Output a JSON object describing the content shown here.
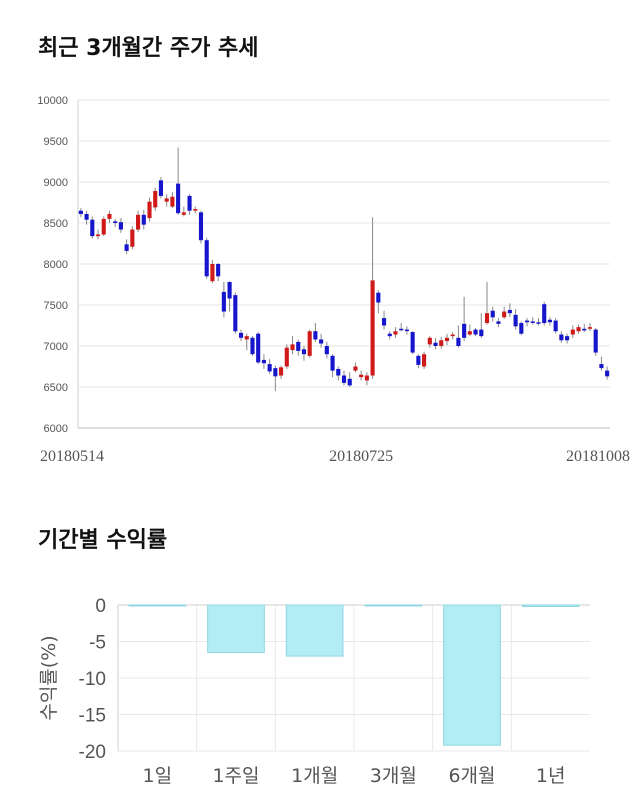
{
  "sections": {
    "price_trend_title": "최근 3개월간 주가 추세",
    "period_return_title": "기간별 수익률"
  },
  "colors": {
    "up": "#d01a1a",
    "down": "#1515cc",
    "return_bar": "#b3ecf5",
    "return_bar_border": "#8fd6e2"
  },
  "chart_data": [
    {
      "type": "candlestick",
      "title": "최근 3개월간 주가 추세",
      "ylim": [
        6000,
        10000
      ],
      "yticks": [
        6000,
        6500,
        7000,
        7500,
        8000,
        8500,
        9000,
        9500,
        10000
      ],
      "x_tick_labels": [
        "20180514",
        "20180725",
        "20181008"
      ],
      "x_tick_positions": [
        0,
        49,
        100
      ],
      "grid": true,
      "candles": [
        [
          8650,
          8610,
          8680,
          8570
        ],
        [
          8610,
          8540,
          8650,
          8480
        ],
        [
          8540,
          8340,
          8580,
          8310
        ],
        [
          8340,
          8360,
          8420,
          8300
        ],
        [
          8360,
          8550,
          8580,
          8340
        ],
        [
          8550,
          8610,
          8650,
          8500
        ],
        [
          8520,
          8500,
          8550,
          8450
        ],
        [
          8510,
          8420,
          8560,
          8380
        ],
        [
          8240,
          8160,
          8300,
          8120
        ],
        [
          8210,
          8420,
          8460,
          8180
        ],
        [
          8420,
          8600,
          8650,
          8390
        ],
        [
          8600,
          8480,
          8660,
          8420
        ],
        [
          8560,
          8760,
          8810,
          8520
        ],
        [
          8690,
          8890,
          8930,
          8650
        ],
        [
          9020,
          8830,
          9060,
          8800
        ],
        [
          8760,
          8800,
          8850,
          8700
        ],
        [
          8700,
          8820,
          8880,
          8680
        ],
        [
          8980,
          8620,
          9420,
          8600
        ],
        [
          8600,
          8630,
          8700,
          8580
        ],
        [
          8830,
          8650,
          8850,
          8600
        ],
        [
          8650,
          8670,
          8700,
          8620
        ],
        [
          8630,
          8290,
          8650,
          8250
        ],
        [
          8290,
          7850,
          8320,
          7820
        ],
        [
          7790,
          8000,
          8050,
          7770
        ],
        [
          8000,
          7850,
          8010,
          7790
        ],
        [
          7660,
          7420,
          7780,
          7350
        ],
        [
          7780,
          7580,
          7790,
          7420
        ],
        [
          7620,
          7180,
          7650,
          7150
        ],
        [
          7160,
          7100,
          7200,
          7060
        ],
        [
          7080,
          7120,
          7150,
          6950
        ],
        [
          7100,
          6900,
          7120,
          6880
        ],
        [
          7150,
          6800,
          7170,
          6780
        ],
        [
          6830,
          6790,
          6900,
          6720
        ],
        [
          6780,
          6690,
          6840,
          6660
        ],
        [
          6730,
          6630,
          6760,
          6450
        ],
        [
          6640,
          6740,
          6760,
          6600
        ],
        [
          6750,
          6980,
          7020,
          6720
        ],
        [
          6950,
          7020,
          7120,
          6900
        ],
        [
          7050,
          6940,
          7080,
          6880
        ],
        [
          6960,
          6900,
          7000,
          6820
        ],
        [
          6880,
          7180,
          7200,
          6860
        ],
        [
          7180,
          7080,
          7280,
          7050
        ],
        [
          7080,
          7030,
          7150,
          6980
        ],
        [
          7000,
          6900,
          7050,
          6850
        ],
        [
          6880,
          6700,
          6900,
          6620
        ],
        [
          6720,
          6640,
          6750,
          6580
        ],
        [
          6640,
          6550,
          6700,
          6520
        ],
        [
          6600,
          6520,
          6680,
          6500
        ],
        [
          6700,
          6750,
          6800,
          6680
        ],
        [
          6620,
          6650,
          6700,
          6580
        ],
        [
          6580,
          6640,
          6680,
          6520
        ],
        [
          6640,
          7800,
          8570,
          6600
        ],
        [
          7650,
          7530,
          7680,
          7400
        ],
        [
          7340,
          7250,
          7430,
          7200
        ],
        [
          7150,
          7120,
          7180,
          7080
        ],
        [
          7140,
          7180,
          7230,
          7100
        ],
        [
          7210,
          7200,
          7280,
          7180
        ],
        [
          7200,
          7190,
          7240,
          7140
        ],
        [
          7170,
          6920,
          7180,
          6900
        ],
        [
          6880,
          6770,
          6900,
          6730
        ],
        [
          6750,
          6900,
          6930,
          6720
        ],
        [
          7020,
          7100,
          7120,
          6980
        ],
        [
          7040,
          7000,
          7100,
          6960
        ],
        [
          7000,
          7070,
          7110,
          6970
        ],
        [
          7060,
          7100,
          7150,
          7010
        ],
        [
          7120,
          7140,
          7170,
          7080
        ],
        [
          7100,
          7000,
          7250,
          6980
        ],
        [
          7270,
          7100,
          7600,
          7060
        ],
        [
          7140,
          7180,
          7260,
          7120
        ],
        [
          7200,
          7140,
          7220,
          7120
        ],
        [
          7200,
          7120,
          7400,
          7100
        ],
        [
          7280,
          7400,
          7780,
          7260
        ],
        [
          7430,
          7350,
          7480,
          7300
        ],
        [
          7300,
          7270,
          7340,
          7230
        ],
        [
          7350,
          7420,
          7480,
          7330
        ],
        [
          7440,
          7400,
          7520,
          7350
        ],
        [
          7380,
          7240,
          7450,
          7200
        ],
        [
          7280,
          7150,
          7300,
          7130
        ],
        [
          7310,
          7290,
          7340,
          7240
        ],
        [
          7300,
          7290,
          7350,
          7260
        ],
        [
          7290,
          7280,
          7340,
          7250
        ],
        [
          7510,
          7280,
          7540,
          7250
        ],
        [
          7320,
          7290,
          7350,
          7250
        ],
        [
          7310,
          7180,
          7340,
          7150
        ],
        [
          7140,
          7070,
          7180,
          7040
        ],
        [
          7120,
          7070,
          7150,
          7030
        ],
        [
          7140,
          7200,
          7250,
          7100
        ],
        [
          7180,
          7230,
          7260,
          7150
        ],
        [
          7210,
          7190,
          7270,
          7170
        ],
        [
          7210,
          7230,
          7280,
          7180
        ],
        [
          7200,
          6920,
          7220,
          6880
        ],
        [
          6780,
          6730,
          6870,
          6700
        ],
        [
          6700,
          6630,
          6750,
          6590
        ]
      ]
    },
    {
      "type": "bar",
      "title": "기간별 수익률",
      "ylabel": "수익률(%)",
      "ylim": [
        -20,
        0
      ],
      "yticks": [
        0,
        -5,
        -10,
        -15,
        -20
      ],
      "categories": [
        "1일",
        "1주일",
        "1개월",
        "3개월",
        "6개월",
        "1년"
      ],
      "values": [
        0,
        -6.5,
        -7.0,
        -0.1,
        -19.2,
        -0.2
      ],
      "grid": true
    }
  ]
}
